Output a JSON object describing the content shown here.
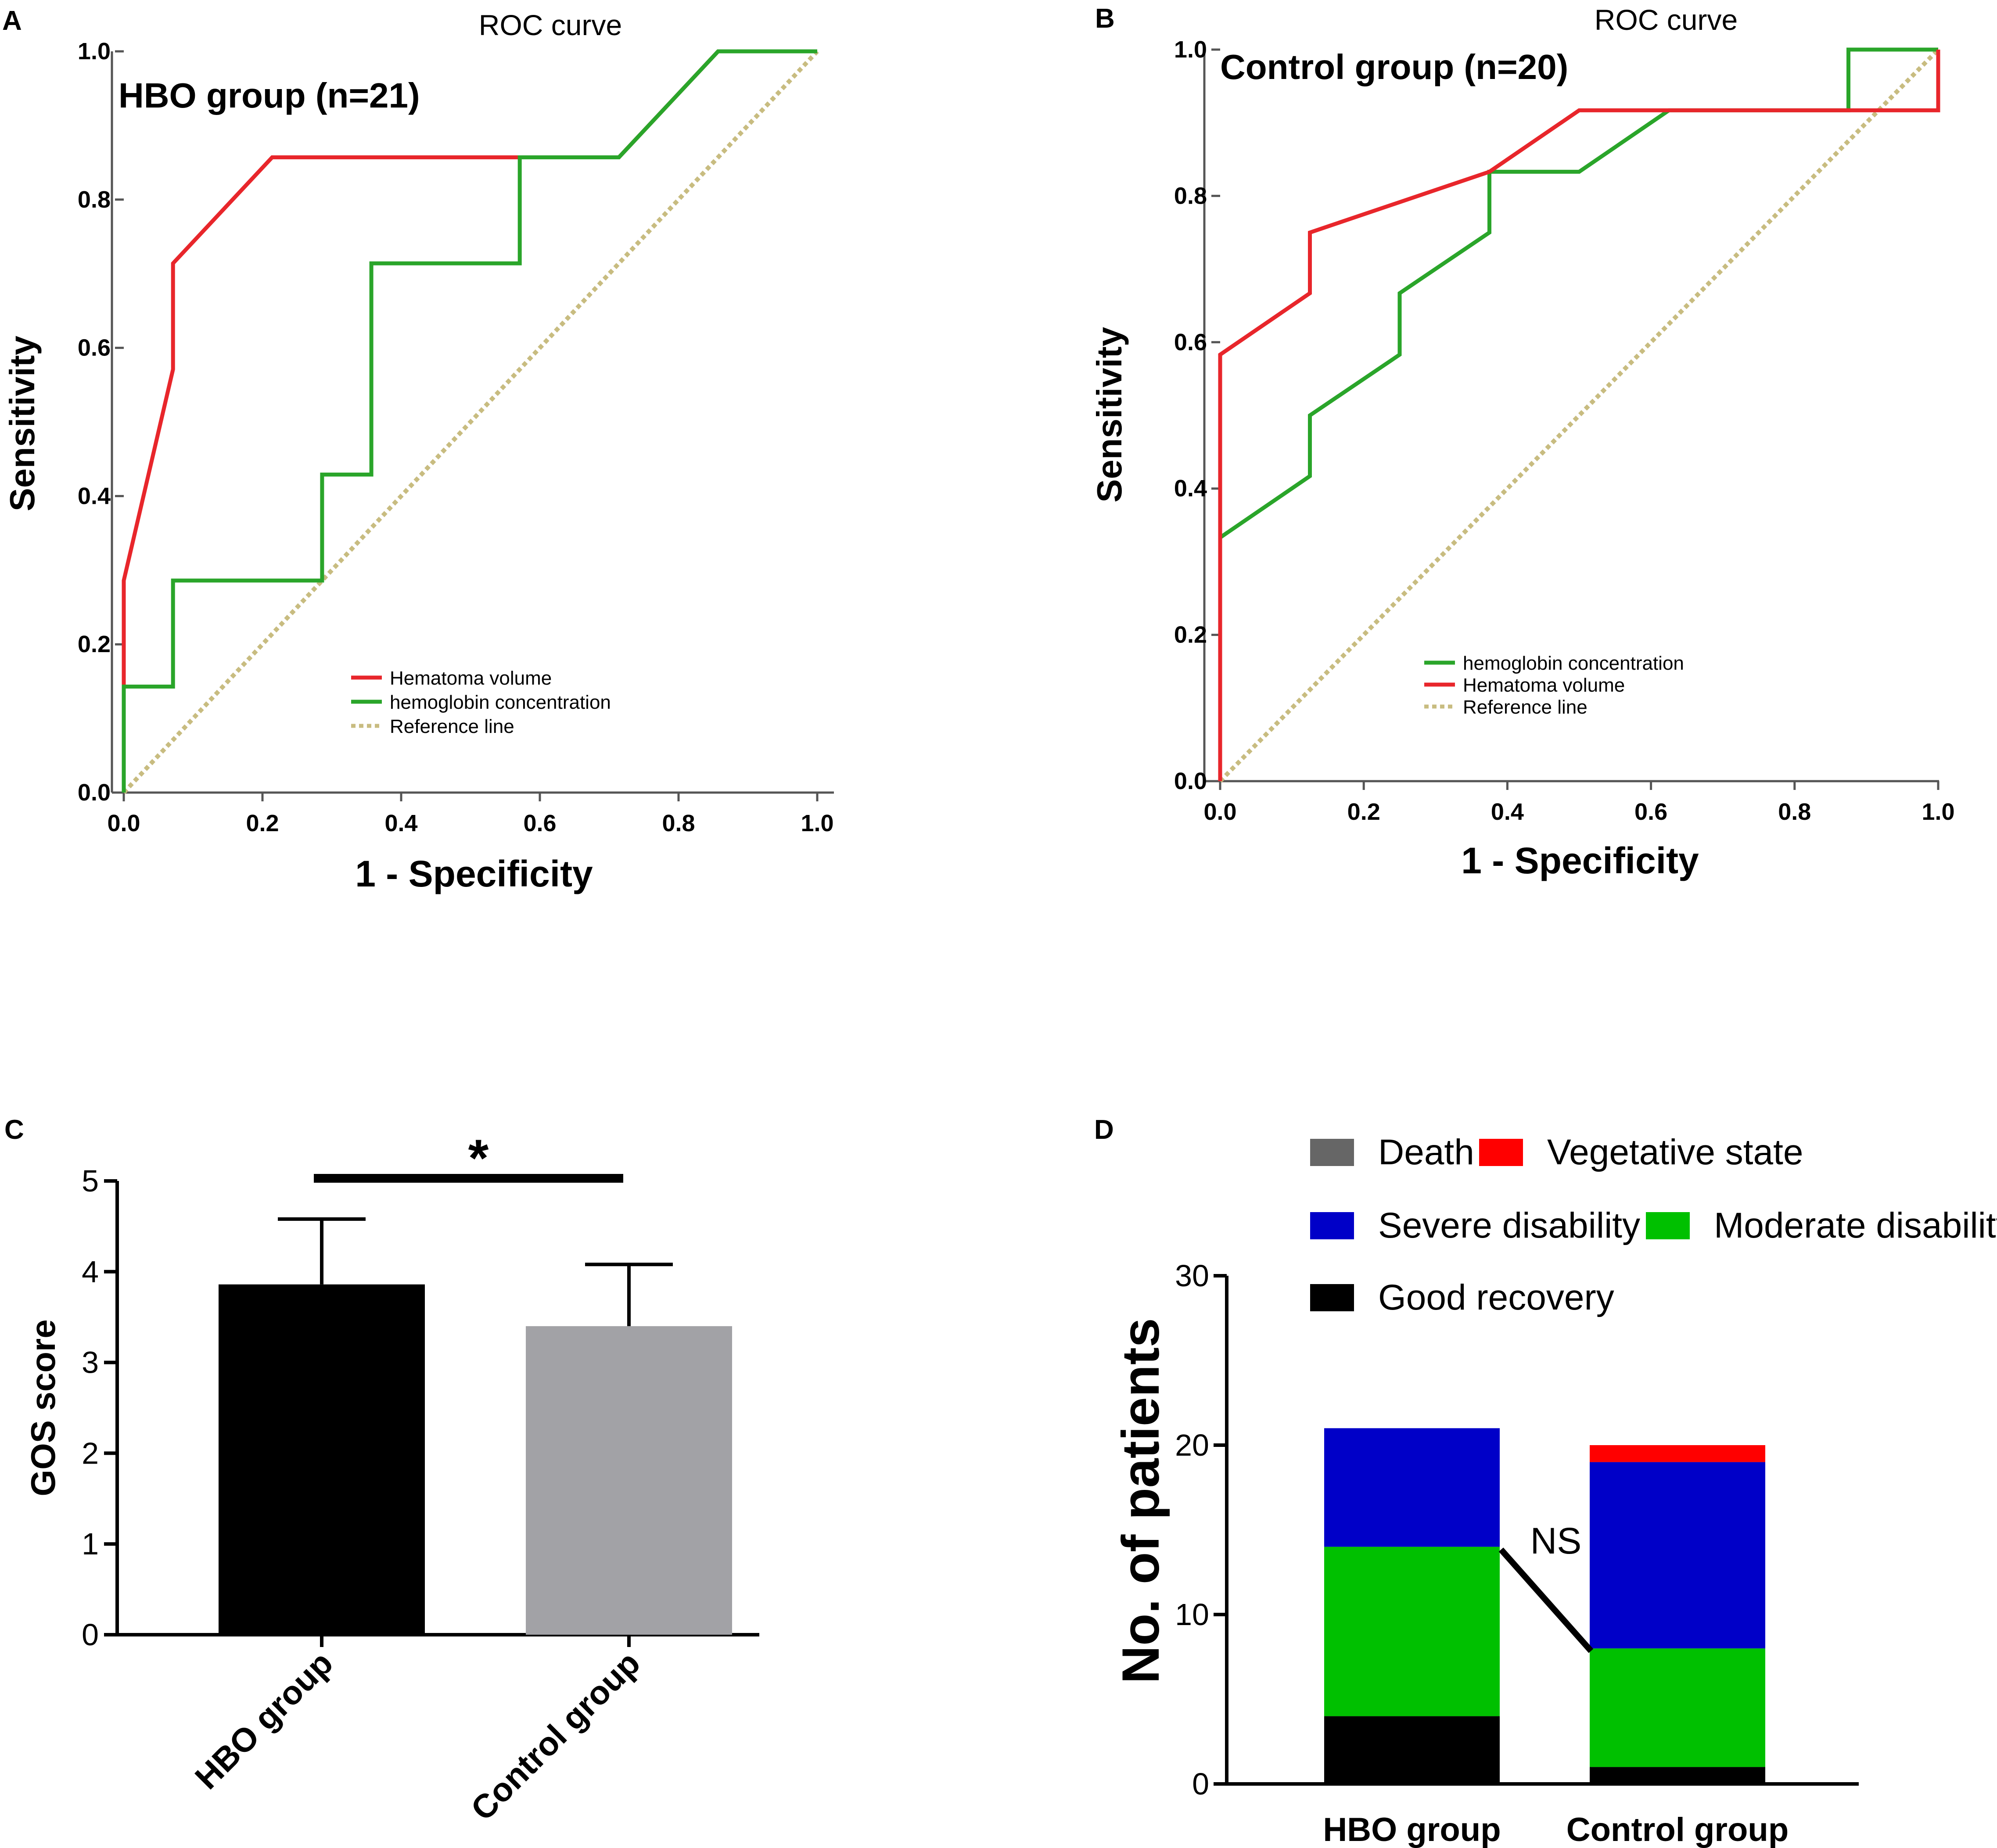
{
  "chart_data": [
    {
      "panel": "A",
      "type": "line",
      "title": "ROC curve",
      "subtitle": "HBO group (n=21)",
      "xlabel": "1 - Specificity",
      "ylabel": "Sensitivity",
      "xlim": [
        0,
        1
      ],
      "ylim": [
        0,
        1
      ],
      "xticks": [
        "0.0",
        "0.2",
        "0.4",
        "0.6",
        "0.8",
        "1.0"
      ],
      "yticks": [
        "0.0",
        "0.2",
        "0.4",
        "0.6",
        "0.8",
        "1.0"
      ],
      "legend_position": "lower-center",
      "series": [
        {
          "name": "Hematoma volume",
          "color": "#e8262b",
          "style": "solid",
          "points": [
            [
              0,
              0
            ],
            [
              0,
              0.286
            ],
            [
              0.071,
              0.571
            ],
            [
              0.071,
              0.714
            ],
            [
              0.214,
              0.857
            ],
            [
              0.571,
              0.857
            ],
            [
              0.714,
              0.857
            ],
            [
              0.857,
              1.0
            ],
            [
              1.0,
              1.0
            ]
          ]
        },
        {
          "name": "hemoglobin concentration",
          "color": "#2aa52a",
          "style": "solid",
          "points": [
            [
              0,
              0
            ],
            [
              0,
              0.143
            ],
            [
              0.071,
              0.143
            ],
            [
              0.071,
              0.286
            ],
            [
              0.286,
              0.286
            ],
            [
              0.286,
              0.429
            ],
            [
              0.357,
              0.429
            ],
            [
              0.357,
              0.714
            ],
            [
              0.571,
              0.714
            ],
            [
              0.571,
              0.857
            ],
            [
              0.714,
              0.857
            ],
            [
              0.857,
              1.0
            ],
            [
              1.0,
              1.0
            ]
          ]
        },
        {
          "name": "Reference line",
          "color": "#c8bc80",
          "style": "dotted",
          "points": [
            [
              0,
              0
            ],
            [
              1,
              1
            ]
          ]
        }
      ]
    },
    {
      "panel": "B",
      "type": "line",
      "title": "ROC curve",
      "subtitle": "Control group (n=20)",
      "xlabel": "1 - Specificity",
      "ylabel": "Sensitivity",
      "xlim": [
        0,
        1
      ],
      "ylim": [
        0,
        1
      ],
      "xticks": [
        "0.0",
        "0.2",
        "0.4",
        "0.6",
        "0.8",
        "1.0"
      ],
      "yticks": [
        "0.0",
        "0.2",
        "0.4",
        "0.6",
        "0.8",
        "1.0"
      ],
      "legend_position": "lower-center",
      "series": [
        {
          "name": "hemoglobin concentration",
          "color": "#2aa52a",
          "style": "solid",
          "points": [
            [
              0,
              0
            ],
            [
              0,
              0.333
            ],
            [
              0.125,
              0.417
            ],
            [
              0.125,
              0.5
            ],
            [
              0.25,
              0.583
            ],
            [
              0.25,
              0.667
            ],
            [
              0.375,
              0.75
            ],
            [
              0.375,
              0.833
            ],
            [
              0.5,
              0.833
            ],
            [
              0.625,
              0.917
            ],
            [
              0.875,
              0.917
            ],
            [
              0.875,
              1.0
            ],
            [
              1.0,
              1.0
            ]
          ]
        },
        {
          "name": "Hematoma volume",
          "color": "#e8262b",
          "style": "solid",
          "points": [
            [
              0,
              0
            ],
            [
              0,
              0.583
            ],
            [
              0.125,
              0.667
            ],
            [
              0.125,
              0.75
            ],
            [
              0.375,
              0.833
            ],
            [
              0.5,
              0.917
            ],
            [
              1.0,
              0.917
            ],
            [
              1.0,
              1.0
            ]
          ]
        },
        {
          "name": "Reference line",
          "color": "#c8bc80",
          "style": "dotted",
          "points": [
            [
              0,
              0
            ],
            [
              1,
              1
            ]
          ]
        }
      ]
    },
    {
      "panel": "C",
      "type": "bar",
      "ylabel": "GOS score",
      "xlabel": "",
      "ylim": [
        0,
        5
      ],
      "yticks": [
        "0",
        "1",
        "2",
        "3",
        "4",
        "5"
      ],
      "categories": [
        "HBO group",
        "Control group"
      ],
      "values": [
        3.86,
        3.4
      ],
      "errors": [
        0.72,
        0.68
      ],
      "colors": [
        "#000000",
        "#a2a2a6"
      ],
      "significance": "*"
    },
    {
      "panel": "D",
      "type": "bar",
      "stacked": true,
      "ylabel": "No. of patients",
      "xlabel": "",
      "ylim": [
        0,
        30
      ],
      "yticks": [
        "0",
        "10",
        "20",
        "30"
      ],
      "categories": [
        "HBO group",
        "Control group"
      ],
      "legend_position": "top",
      "series": [
        {
          "name": "Good recovery",
          "color": "#000000",
          "values": [
            4,
            1
          ]
        },
        {
          "name": "Moderate disability",
          "color": "#00c000",
          "values": [
            10,
            7
          ]
        },
        {
          "name": "Severe disability",
          "color": "#0000c8",
          "values": [
            7,
            11
          ]
        },
        {
          "name": "Vegetative state",
          "color": "#ff0000",
          "values": [
            0,
            1
          ]
        },
        {
          "name": "Death",
          "color": "#666666",
          "values": [
            0,
            0
          ]
        }
      ],
      "annotation": "NS"
    }
  ]
}
